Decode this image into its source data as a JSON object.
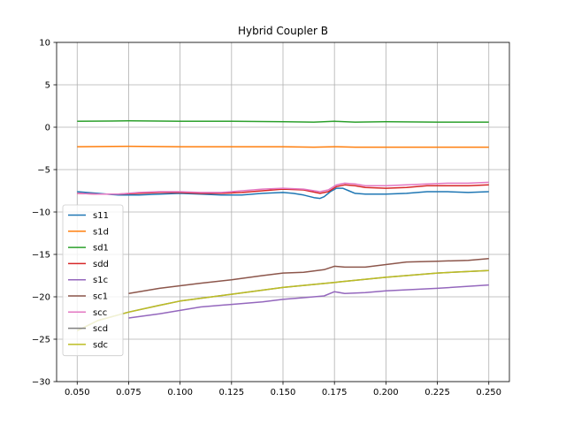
{
  "chart_data": {
    "type": "line",
    "title": "Hybrid Coupler B",
    "xlabel": "",
    "ylabel": "",
    "xlim": [
      0.04,
      0.26
    ],
    "ylim": [
      -30,
      10
    ],
    "grid": true,
    "legend_position": "lower-left",
    "x_ticks": [
      0.05,
      0.075,
      0.1,
      0.125,
      0.15,
      0.175,
      0.2,
      0.225,
      0.25
    ],
    "x_tick_labels": [
      "0.050",
      "0.075",
      "0.100",
      "0.125",
      "0.150",
      "0.175",
      "0.200",
      "0.225",
      "0.250"
    ],
    "y_ticks": [
      10,
      5,
      0,
      -5,
      -10,
      -15,
      -20,
      -25,
      -30
    ],
    "y_tick_labels": [
      "10",
      "5",
      "0",
      "−5",
      "−10",
      "−15",
      "−20",
      "−25",
      "−30"
    ],
    "series": [
      {
        "name": "s11",
        "color": "#1f77b4",
        "x": [
          0.05,
          0.06,
          0.07,
          0.08,
          0.09,
          0.1,
          0.11,
          0.12,
          0.13,
          0.14,
          0.15,
          0.155,
          0.16,
          0.165,
          0.168,
          0.17,
          0.173,
          0.176,
          0.179,
          0.182,
          0.185,
          0.19,
          0.2,
          0.21,
          0.22,
          0.23,
          0.24,
          0.25
        ],
        "y": [
          -7.6,
          -7.8,
          -8.0,
          -8.0,
          -7.9,
          -7.8,
          -7.9,
          -8.0,
          -8.0,
          -7.8,
          -7.7,
          -7.8,
          -8.0,
          -8.3,
          -8.4,
          -8.2,
          -7.6,
          -7.2,
          -7.2,
          -7.5,
          -7.8,
          -7.9,
          -7.9,
          -7.8,
          -7.6,
          -7.6,
          -7.7,
          -7.6
        ]
      },
      {
        "name": "s1d",
        "color": "#ff7f0e",
        "x": [
          0.05,
          0.075,
          0.1,
          0.125,
          0.15,
          0.165,
          0.175,
          0.185,
          0.2,
          0.225,
          0.25
        ],
        "y": [
          -2.3,
          -2.25,
          -2.3,
          -2.3,
          -2.3,
          -2.35,
          -2.3,
          -2.35,
          -2.35,
          -2.35,
          -2.35
        ]
      },
      {
        "name": "sd1",
        "color": "#2ca02c",
        "x": [
          0.05,
          0.075,
          0.1,
          0.125,
          0.15,
          0.165,
          0.175,
          0.185,
          0.2,
          0.225,
          0.25
        ],
        "y": [
          0.7,
          0.75,
          0.7,
          0.7,
          0.65,
          0.6,
          0.7,
          0.6,
          0.65,
          0.6,
          0.6
        ]
      },
      {
        "name": "sdd",
        "color": "#d62728",
        "x": [
          0.05,
          0.06,
          0.07,
          0.08,
          0.09,
          0.1,
          0.11,
          0.12,
          0.13,
          0.14,
          0.15,
          0.16,
          0.168,
          0.172,
          0.176,
          0.18,
          0.185,
          0.19,
          0.2,
          0.21,
          0.22,
          0.23,
          0.24,
          0.25
        ],
        "y": [
          -7.8,
          -7.9,
          -7.9,
          -7.8,
          -7.7,
          -7.7,
          -7.8,
          -7.8,
          -7.7,
          -7.5,
          -7.3,
          -7.4,
          -7.8,
          -7.6,
          -7.0,
          -6.8,
          -6.9,
          -7.1,
          -7.2,
          -7.1,
          -6.9,
          -6.9,
          -6.9,
          -6.8
        ]
      },
      {
        "name": "s1c",
        "color": "#9467bd",
        "x": [
          0.075,
          0.09,
          0.1,
          0.11,
          0.125,
          0.14,
          0.15,
          0.16,
          0.17,
          0.175,
          0.18,
          0.19,
          0.2,
          0.225,
          0.25
        ],
        "y": [
          -22.5,
          -22.0,
          -21.6,
          -21.2,
          -20.9,
          -20.6,
          -20.3,
          -20.1,
          -19.9,
          -19.4,
          -19.6,
          -19.5,
          -19.3,
          -19.0,
          -18.6
        ]
      },
      {
        "name": "sc1",
        "color": "#8c564b",
        "x": [
          0.075,
          0.09,
          0.1,
          0.11,
          0.125,
          0.14,
          0.15,
          0.16,
          0.17,
          0.175,
          0.18,
          0.19,
          0.2,
          0.21,
          0.225,
          0.24,
          0.25
        ],
        "y": [
          -19.6,
          -19.0,
          -18.7,
          -18.4,
          -18.0,
          -17.5,
          -17.2,
          -17.1,
          -16.8,
          -16.4,
          -16.5,
          -16.5,
          -16.2,
          -15.9,
          -15.8,
          -15.7,
          -15.5
        ]
      },
      {
        "name": "scc",
        "color": "#e377c2",
        "x": [
          0.05,
          0.06,
          0.07,
          0.08,
          0.09,
          0.1,
          0.11,
          0.12,
          0.13,
          0.14,
          0.15,
          0.16,
          0.168,
          0.172,
          0.176,
          0.18,
          0.185,
          0.19,
          0.2,
          0.21,
          0.22,
          0.23,
          0.24,
          0.25
        ],
        "y": [
          -7.8,
          -7.9,
          -7.9,
          -7.7,
          -7.6,
          -7.6,
          -7.7,
          -7.7,
          -7.5,
          -7.3,
          -7.2,
          -7.3,
          -7.6,
          -7.4,
          -6.8,
          -6.6,
          -6.7,
          -6.9,
          -6.9,
          -6.8,
          -6.7,
          -6.6,
          -6.6,
          -6.5
        ]
      },
      {
        "name": "scd",
        "color": "#7f7f7f",
        "x": [
          0.05,
          0.06,
          0.075,
          0.09,
          0.1,
          0.125,
          0.15,
          0.175,
          0.2,
          0.225,
          0.25
        ],
        "y": [
          -24.0,
          -22.8,
          -21.8,
          -21.0,
          -20.5,
          -19.7,
          -18.9,
          -18.3,
          -17.7,
          -17.2,
          -16.9
        ]
      },
      {
        "name": "sdc",
        "color": "#bcbd22",
        "x": [
          0.05,
          0.06,
          0.075,
          0.09,
          0.1,
          0.125,
          0.15,
          0.175,
          0.2,
          0.225,
          0.25
        ],
        "y": [
          -24.0,
          -22.8,
          -21.8,
          -21.0,
          -20.5,
          -19.7,
          -18.9,
          -18.3,
          -17.7,
          -17.2,
          -16.9
        ]
      }
    ]
  }
}
